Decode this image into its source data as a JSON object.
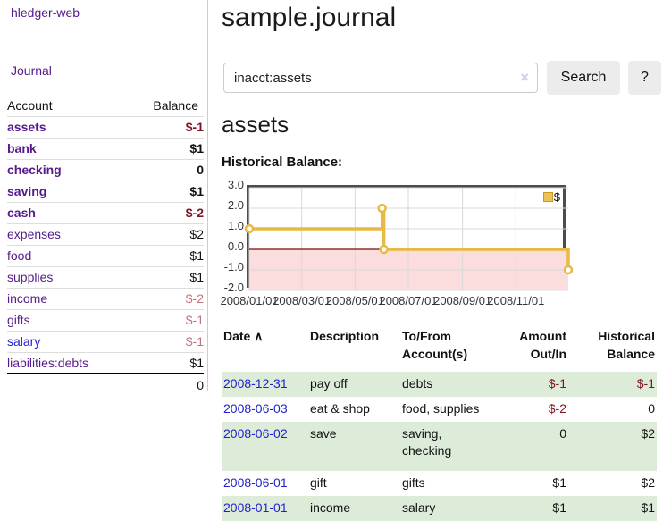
{
  "sidebar": {
    "brand": "hledger-web",
    "nav": {
      "journal": "Journal"
    },
    "accounts_table": {
      "header": {
        "account": "Account",
        "balance": "Balance"
      },
      "rows": [
        {
          "name": "assets",
          "balance": "$-1",
          "indent": 1,
          "emph": true,
          "name_color": "purple",
          "balance_tone": "neg-strong"
        },
        {
          "name": "bank",
          "balance": "$1",
          "indent": 2,
          "emph": true,
          "name_color": "purple",
          "balance_tone": "plain"
        },
        {
          "name": "checking",
          "balance": "0",
          "indent": 3,
          "emph": true,
          "name_color": "purple",
          "balance_tone": "plain"
        },
        {
          "name": "saving",
          "balance": "$1",
          "indent": 3,
          "emph": true,
          "name_color": "purple",
          "balance_tone": "plain"
        },
        {
          "name": "cash",
          "balance": "$-2",
          "indent": 2,
          "emph": true,
          "name_color": "purple",
          "balance_tone": "neg-strong"
        },
        {
          "name": "expenses",
          "balance": "$2",
          "indent": 1,
          "emph": false,
          "name_color": "purple",
          "balance_tone": "plain"
        },
        {
          "name": "food",
          "balance": "$1",
          "indent": 2,
          "emph": false,
          "name_color": "purple",
          "balance_tone": "plain"
        },
        {
          "name": "supplies",
          "balance": "$1",
          "indent": 2,
          "emph": false,
          "name_color": "purple",
          "balance_tone": "plain"
        },
        {
          "name": "income",
          "balance": "$-2",
          "indent": 1,
          "emph": false,
          "name_color": "purple",
          "balance_tone": "neg-weak"
        },
        {
          "name": "gifts",
          "balance": "$-1",
          "indent": 2,
          "emph": false,
          "name_color": "purple",
          "balance_tone": "neg-weak"
        },
        {
          "name": "salary",
          "balance": "$-1",
          "indent": 2,
          "emph": false,
          "name_color": "blue",
          "balance_tone": "neg-weak"
        },
        {
          "name": "liabilities:debts",
          "balance": "$1",
          "indent": 1,
          "emph": false,
          "name_color": "purple",
          "balance_tone": "plain"
        }
      ],
      "total": "0"
    }
  },
  "main": {
    "title": "sample.journal",
    "search": {
      "value": "inacct:assets",
      "clear_icon": "×",
      "button_label": "Search",
      "help_label": "?"
    },
    "account_heading": "assets",
    "chart_heading": "Historical Balance:"
  },
  "chart_data": {
    "type": "line",
    "title": "Historical Balance:",
    "step": true,
    "series": [
      {
        "name": "$",
        "points": [
          {
            "x": "2008-01-01",
            "y": 1
          },
          {
            "x": "2008-06-01",
            "y": 2
          },
          {
            "x": "2008-06-02",
            "y": 2
          },
          {
            "x": "2008-06-03",
            "y": 0
          },
          {
            "x": "2008-12-31",
            "y": -1
          }
        ]
      }
    ],
    "x_range": [
      "2008-01-01",
      "2008-12-31"
    ],
    "ylim": [
      -2,
      3
    ],
    "y_tick_labels": [
      "3.0",
      "2.0",
      "1.0",
      "0.0",
      "-1.0",
      "-2.0"
    ],
    "x_ticks": [
      "2008-01-01",
      "2008-03-01",
      "2008-05-01",
      "2008-07-01",
      "2008-09-01",
      "2008-11-01"
    ],
    "x_tick_labels": [
      "2008/01/01",
      "2008/03/01",
      "2008/05/01",
      "2008/07/01",
      "2008/09/01",
      "2008/11/01"
    ],
    "grid": true,
    "legend": {
      "label": "$",
      "position": "top-right"
    },
    "colors": {
      "line": "#e8ba43",
      "point_fill": "#fffdf2",
      "negative_fill": "#fbdddd",
      "zero_line": "#7c0a02",
      "grid": "#d9d9d9",
      "plot_border": "#4c4c4c",
      "legend_fill": "#ecc356",
      "legend_border": "#c9991f"
    }
  },
  "register": {
    "columns": [
      "Date",
      "Description",
      "To/From Account(s)",
      "Amount Out/In",
      "Historical Balance"
    ],
    "sort": {
      "column": "Date",
      "direction_icon": "∧"
    },
    "rows": [
      {
        "date": "2008-12-31",
        "description": "pay off",
        "accounts": "debts",
        "amount": "$-1",
        "amount_tone": "neg",
        "balance": "$-1",
        "balance_tone": "neg"
      },
      {
        "date": "2008-06-03",
        "description": "eat & shop",
        "accounts": "food, supplies",
        "amount": "$-2",
        "amount_tone": "neg",
        "balance": "0",
        "balance_tone": "plain"
      },
      {
        "date": "2008-06-02",
        "description": "save",
        "accounts": "saving, checking",
        "amount": "0",
        "amount_tone": "plain",
        "balance": "$2",
        "balance_tone": "plain"
      },
      {
        "date": "2008-06-01",
        "description": "gift",
        "accounts": "gifts",
        "amount": "$1",
        "amount_tone": "plain",
        "balance": "$2",
        "balance_tone": "plain"
      },
      {
        "date": "2008-01-01",
        "description": "income",
        "accounts": "salary",
        "amount": "$1",
        "amount_tone": "plain",
        "balance": "$1",
        "balance_tone": "plain"
      }
    ]
  },
  "colors": {
    "link_purple": "#551a8b",
    "link_blue": "#2222cc",
    "negative_strong": "#7c1322",
    "negative_weak": "#c2737e",
    "row_stripe_green": "#dcecd8",
    "button_bg": "#ececec"
  }
}
